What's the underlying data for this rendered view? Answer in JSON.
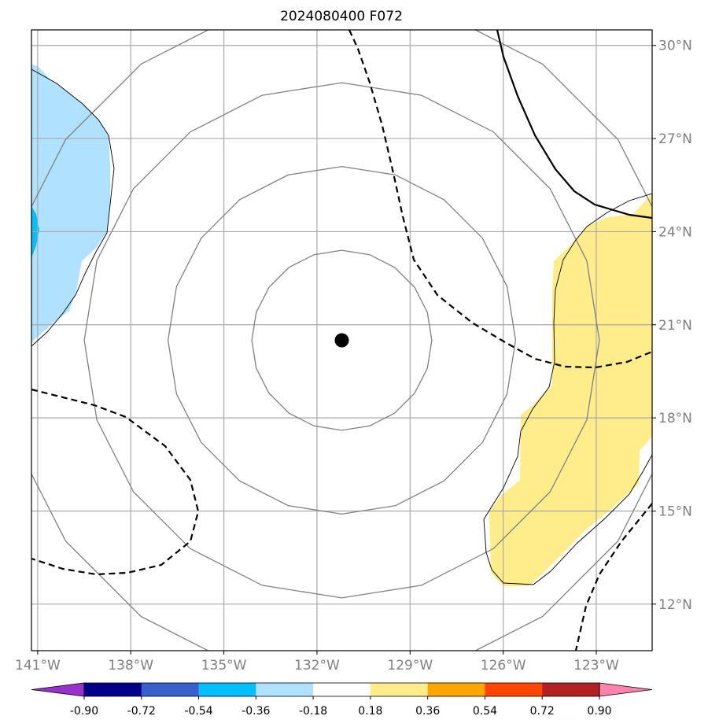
{
  "title": "2024080400 F072",
  "map": {
    "lon_range": [
      -141.2,
      -121.2
    ],
    "lat_range": [
      10.5,
      30.5
    ],
    "lon_ticks": [
      -141,
      -138,
      -135,
      -132,
      -129,
      -126,
      -123
    ],
    "lon_tick_labels": [
      "141°W",
      "138°W",
      "135°W",
      "132°W",
      "129°W",
      "126°W",
      "123°W"
    ],
    "lat_ticks": [
      30,
      27,
      24,
      21,
      18,
      15,
      12
    ],
    "lat_tick_labels": [
      "30°N",
      "27°N",
      "24°N",
      "21°N",
      "18°N",
      "15°N",
      "12°N"
    ],
    "grid": true,
    "center_marker": {
      "lon": -131.2,
      "lat": 20.5,
      "color": "#000000"
    },
    "range_rings_deg": [
      2.9,
      5.6,
      8.3,
      11.0
    ]
  },
  "colorbar": {
    "levels": [
      "-0.90",
      "-0.72",
      "-0.54",
      "-0.36",
      "-0.18",
      "0.18",
      "0.36",
      "0.54",
      "0.72",
      "0.90"
    ],
    "colors": [
      "#9932cc",
      "#00008b",
      "#3a5fcd",
      "#00bfff",
      "#b0e2ff",
      "#ffffff",
      "#ffec8b",
      "#ffa500",
      "#ff4500",
      "#b22222",
      "#ff82ab"
    ]
  },
  "fill_colors": {
    "light_blue": "#b0e2ff",
    "blue": "#00bfff",
    "yellow": "#ffec8b"
  }
}
